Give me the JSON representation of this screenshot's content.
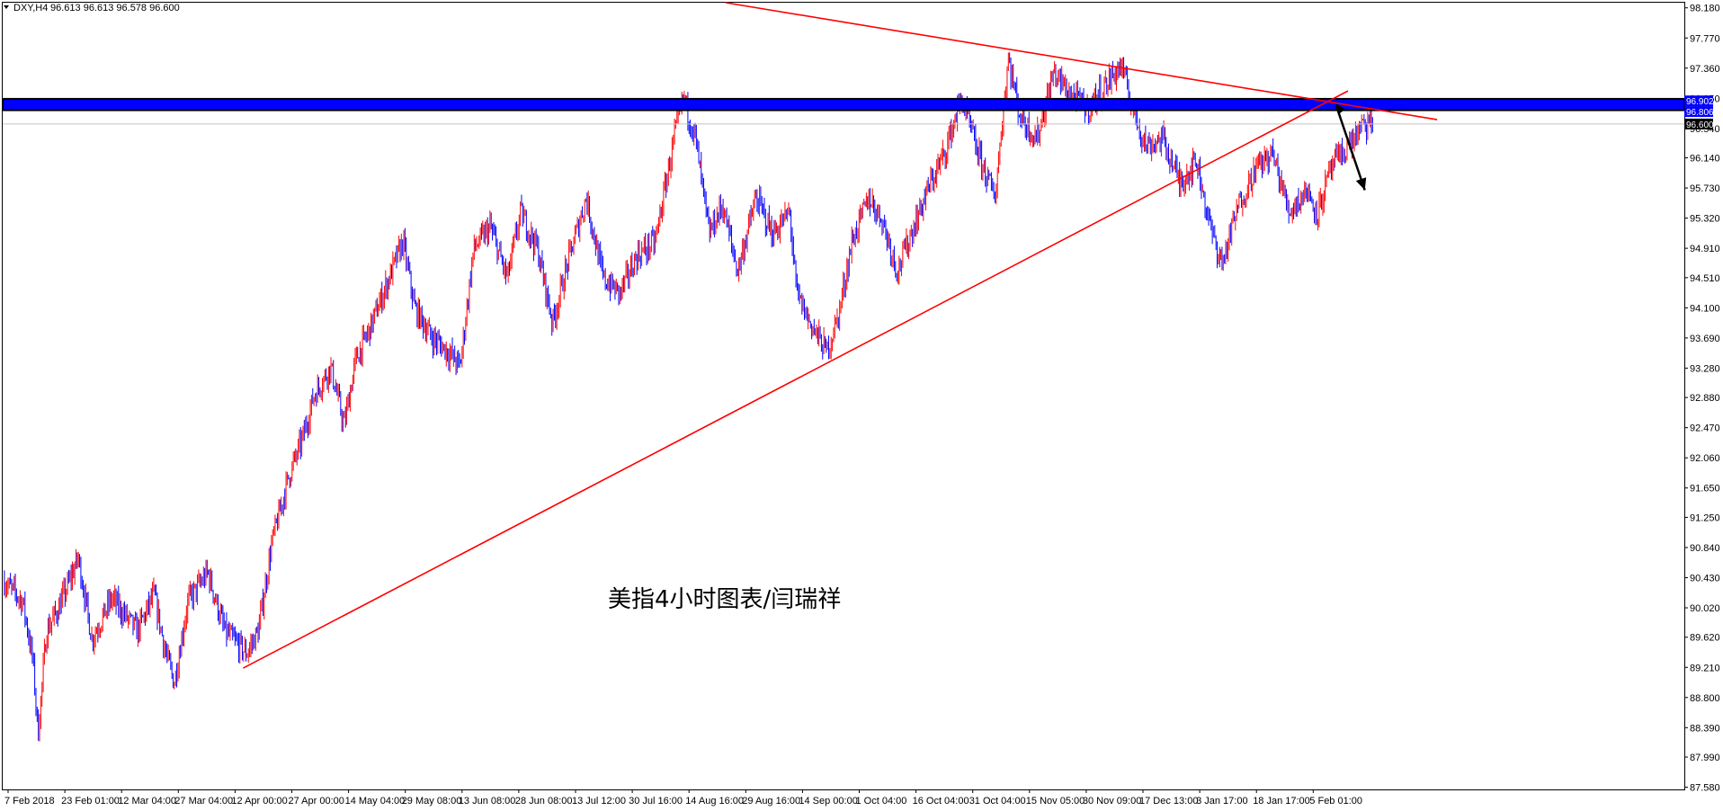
{
  "header": {
    "symbol_label": "DXY,H4",
    "ohlc_label": "96.613 96.613 96.578 96.600"
  },
  "watermark": "美指4小时图表/闫瑞祥",
  "colors": {
    "bull": "#ff0000",
    "bear": "#0000ff",
    "trendline": "#ff0000",
    "resistance_zone": "#0000ff",
    "resistance_border": "#000000",
    "arrow": "#000000",
    "current_price_line": "#c0c0c0"
  },
  "chart_data": {
    "type": "candlestick",
    "instrument": "DXY",
    "timeframe": "H4",
    "y_axis_range": [
      87.55,
      98.25
    ],
    "y_ticks": [
      "98.180",
      "97.770",
      "97.360",
      "96.950",
      "96.540",
      "96.140",
      "95.730",
      "95.320",
      "94.910",
      "94.510",
      "94.100",
      "93.690",
      "93.280",
      "92.880",
      "92.470",
      "92.060",
      "91.650",
      "91.250",
      "90.840",
      "90.430",
      "90.020",
      "89.620",
      "89.210",
      "88.800",
      "88.390",
      "87.990",
      "87.580"
    ],
    "x_ticks": [
      "7 Feb 2018",
      "23 Feb 01:00",
      "12 Mar 04:00",
      "27 Mar 04:00",
      "12 Apr 00:00",
      "27 Apr 00:00",
      "14 May 04:00",
      "29 May 08:00",
      "13 Jun 08:00",
      "28 Jun 08:00",
      "13 Jul 12:00",
      "30 Jul 16:00",
      "14 Aug 16:00",
      "29 Aug 16:00",
      "14 Sep 00:00",
      "1 Oct 04:00",
      "16 Oct 04:00",
      "31 Oct 04:00",
      "15 Nov 05:00",
      "30 Nov 09:00",
      "17 Dec 13:00",
      "3 Jan 17:00",
      "18 Jan 17:00",
      "5 Feb 01:00"
    ],
    "price_path_keypoints": [
      [
        0,
        90.4
      ],
      [
        0.012,
        90.1
      ],
      [
        0.018,
        89.3
      ],
      [
        0.021,
        88.3
      ],
      [
        0.026,
        89.7
      ],
      [
        0.034,
        90.05
      ],
      [
        0.045,
        90.7
      ],
      [
        0.053,
        89.6
      ],
      [
        0.065,
        90.15
      ],
      [
        0.08,
        89.7
      ],
      [
        0.09,
        90.2
      ],
      [
        0.097,
        89.4
      ],
      [
        0.102,
        89.0
      ],
      [
        0.11,
        90.1
      ],
      [
        0.122,
        90.5
      ],
      [
        0.132,
        89.7
      ],
      [
        0.145,
        89.4
      ],
      [
        0.152,
        89.7
      ],
      [
        0.16,
        90.9
      ],
      [
        0.17,
        91.8
      ],
      [
        0.178,
        92.3
      ],
      [
        0.185,
        92.9
      ],
      [
        0.195,
        93.3
      ],
      [
        0.203,
        92.5
      ],
      [
        0.21,
        93.4
      ],
      [
        0.218,
        93.8
      ],
      [
        0.228,
        94.4
      ],
      [
        0.238,
        95.0
      ],
      [
        0.245,
        94.1
      ],
      [
        0.255,
        93.7
      ],
      [
        0.265,
        93.5
      ],
      [
        0.272,
        93.3
      ],
      [
        0.28,
        94.9
      ],
      [
        0.29,
        95.2
      ],
      [
        0.3,
        94.5
      ],
      [
        0.308,
        95.4
      ],
      [
        0.318,
        94.9
      ],
      [
        0.327,
        93.9
      ],
      [
        0.337,
        94.8
      ],
      [
        0.347,
        95.6
      ],
      [
        0.357,
        94.5
      ],
      [
        0.367,
        94.3
      ],
      [
        0.377,
        94.8
      ],
      [
        0.388,
        95.0
      ],
      [
        0.4,
        96.5
      ],
      [
        0.405,
        96.95
      ],
      [
        0.412,
        96.4
      ],
      [
        0.42,
        95.1
      ],
      [
        0.428,
        95.5
      ],
      [
        0.437,
        94.6
      ],
      [
        0.448,
        95.6
      ],
      [
        0.458,
        95.1
      ],
      [
        0.468,
        95.4
      ],
      [
        0.472,
        94.3
      ],
      [
        0.48,
        93.9
      ],
      [
        0.49,
        93.5
      ],
      [
        0.497,
        94.0
      ],
      [
        0.505,
        95.0
      ],
      [
        0.515,
        95.6
      ],
      [
        0.523,
        95.3
      ],
      [
        0.532,
        94.6
      ],
      [
        0.54,
        95.1
      ],
      [
        0.55,
        95.7
      ],
      [
        0.56,
        96.2
      ],
      [
        0.57,
        96.95
      ],
      [
        0.58,
        96.2
      ],
      [
        0.59,
        95.6
      ],
      [
        0.598,
        97.5
      ],
      [
        0.605,
        96.7
      ],
      [
        0.615,
        96.4
      ],
      [
        0.625,
        97.3
      ],
      [
        0.635,
        97.0
      ],
      [
        0.645,
        96.8
      ],
      [
        0.655,
        97.1
      ],
      [
        0.665,
        97.4
      ],
      [
        0.672,
        96.8
      ],
      [
        0.68,
        96.3
      ],
      [
        0.69,
        96.4
      ],
      [
        0.7,
        95.8
      ],
      [
        0.71,
        96.1
      ],
      [
        0.718,
        95.2
      ],
      [
        0.725,
        94.7
      ],
      [
        0.735,
        95.5
      ],
      [
        0.745,
        96.0
      ],
      [
        0.755,
        96.2
      ],
      [
        0.765,
        95.4
      ],
      [
        0.775,
        95.7
      ],
      [
        0.782,
        95.4
      ],
      [
        0.79,
        96.0
      ],
      [
        0.8,
        96.3
      ],
      [
        0.808,
        96.55
      ],
      [
        0.815,
        96.6
      ]
    ],
    "trendlines": [
      {
        "name": "rising support",
        "from": [
          0.143,
          89.2
        ],
        "to": [
          0.8,
          97.05
        ]
      },
      {
        "name": "falling resistance",
        "from": [
          0.43,
          98.25
        ],
        "to": [
          0.853,
          96.66
        ]
      }
    ],
    "resistance_zone": [
      96.8,
      96.93
    ],
    "current_price": 96.6,
    "price_tags": {
      "zone_top": "96.902",
      "zone_bottom": "96.806",
      "current": "96.600"
    },
    "forecast_arrow": {
      "from": [
        0.793,
        96.85
      ],
      "to": [
        0.81,
        95.7
      ]
    }
  }
}
